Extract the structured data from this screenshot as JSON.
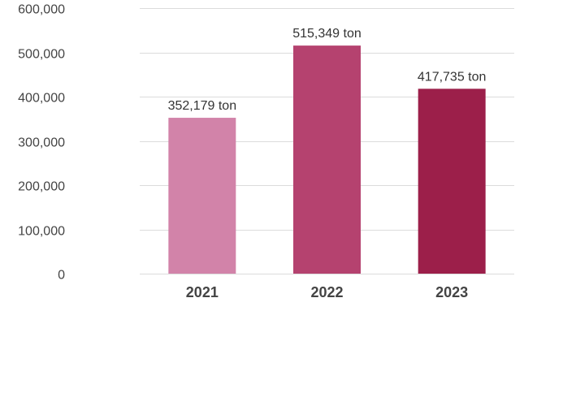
{
  "chart_data": {
    "type": "bar",
    "categories": [
      "2021",
      "2022",
      "2023"
    ],
    "values": [
      352179,
      515349,
      417735
    ],
    "data_labels": [
      "352,179 ton",
      "515,349 ton",
      "417,735 ton"
    ],
    "colors": [
      "#d283a9",
      "#b5426f",
      "#9c1f4a"
    ],
    "ylim": [
      0,
      600000
    ],
    "yticks": [
      0,
      100000,
      200000,
      300000,
      400000,
      500000,
      600000
    ],
    "ytick_labels": [
      "0",
      "100,000",
      "200,000",
      "300,000",
      "400,000",
      "500,000",
      "600,000"
    ],
    "title": "",
    "xlabel": "",
    "ylabel": "",
    "grid": true,
    "legend": "none"
  }
}
